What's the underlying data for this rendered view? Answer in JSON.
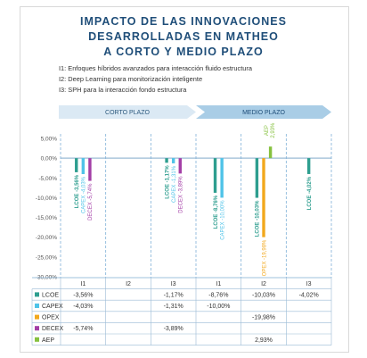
{
  "title_lines": [
    "IMPACTO DE LAS INNOVACIONES",
    "DESARROLLADAS EN MATHEO",
    "A CORTO Y MEDIO PLAZO"
  ],
  "innovations": [
    "I1: Enfoques híbridos avanzados para interacción fluido estructura",
    "I2: Deep Learning para monitorización inteligente",
    "I3: SPH para la interacción fondo estructura"
  ],
  "periods": [
    {
      "label": "CORTO PLAZO",
      "color": "#dbe9f4",
      "text_color": "#2e5a7e"
    },
    {
      "label": "MEDIO PLAZO",
      "color": "#a9cde6",
      "text_color": "#1f4e79"
    }
  ],
  "chart_data": {
    "type": "bar",
    "categories": [
      "I1",
      "I2",
      "I3",
      "I1",
      "I2",
      "I3"
    ],
    "ylim": [
      -30,
      5
    ],
    "yticks": [
      "5,00%",
      "0,00%",
      "-5,00%",
      "-10,00%",
      "-15,00%",
      "-20,00%",
      "-25,00%",
      "-30,00%"
    ],
    "ytick_values": [
      5,
      0,
      -5,
      -10,
      -15,
      -20,
      -25,
      -30
    ],
    "grid": "vertical dashed separators",
    "series": [
      {
        "name": "LCOE",
        "color": "#2e9e8f",
        "values": [
          -3.56,
          null,
          -1.17,
          -8.76,
          -10.03,
          -4.02
        ],
        "labels": [
          "-3,56%",
          "",
          "-1,17%",
          "-8,76%",
          "-10,03%",
          "-4,02%"
        ]
      },
      {
        "name": "CAPEX",
        "color": "#4fc3e8",
        "values": [
          -4.03,
          null,
          -1.31,
          -10.0,
          null,
          null
        ],
        "labels": [
          "-4,03%",
          "",
          "-1,31%",
          "-10,00%",
          "",
          ""
        ]
      },
      {
        "name": "OPEX",
        "color": "#f2a81d",
        "values": [
          null,
          null,
          null,
          null,
          -19.98,
          null
        ],
        "labels": [
          "",
          "",
          "",
          "",
          "-19,98%",
          ""
        ]
      },
      {
        "name": "DECEX",
        "color": "#a33ea6",
        "values": [
          -5.74,
          null,
          -3.89,
          null,
          null,
          null
        ],
        "labels": [
          "-5,74%",
          "",
          "-3,89%",
          "",
          "",
          ""
        ]
      },
      {
        "name": "AEP",
        "color": "#86c13f",
        "values": [
          null,
          null,
          null,
          null,
          2.93,
          null
        ],
        "labels": [
          "",
          "",
          "",
          "",
          "2,93%",
          ""
        ]
      }
    ]
  }
}
